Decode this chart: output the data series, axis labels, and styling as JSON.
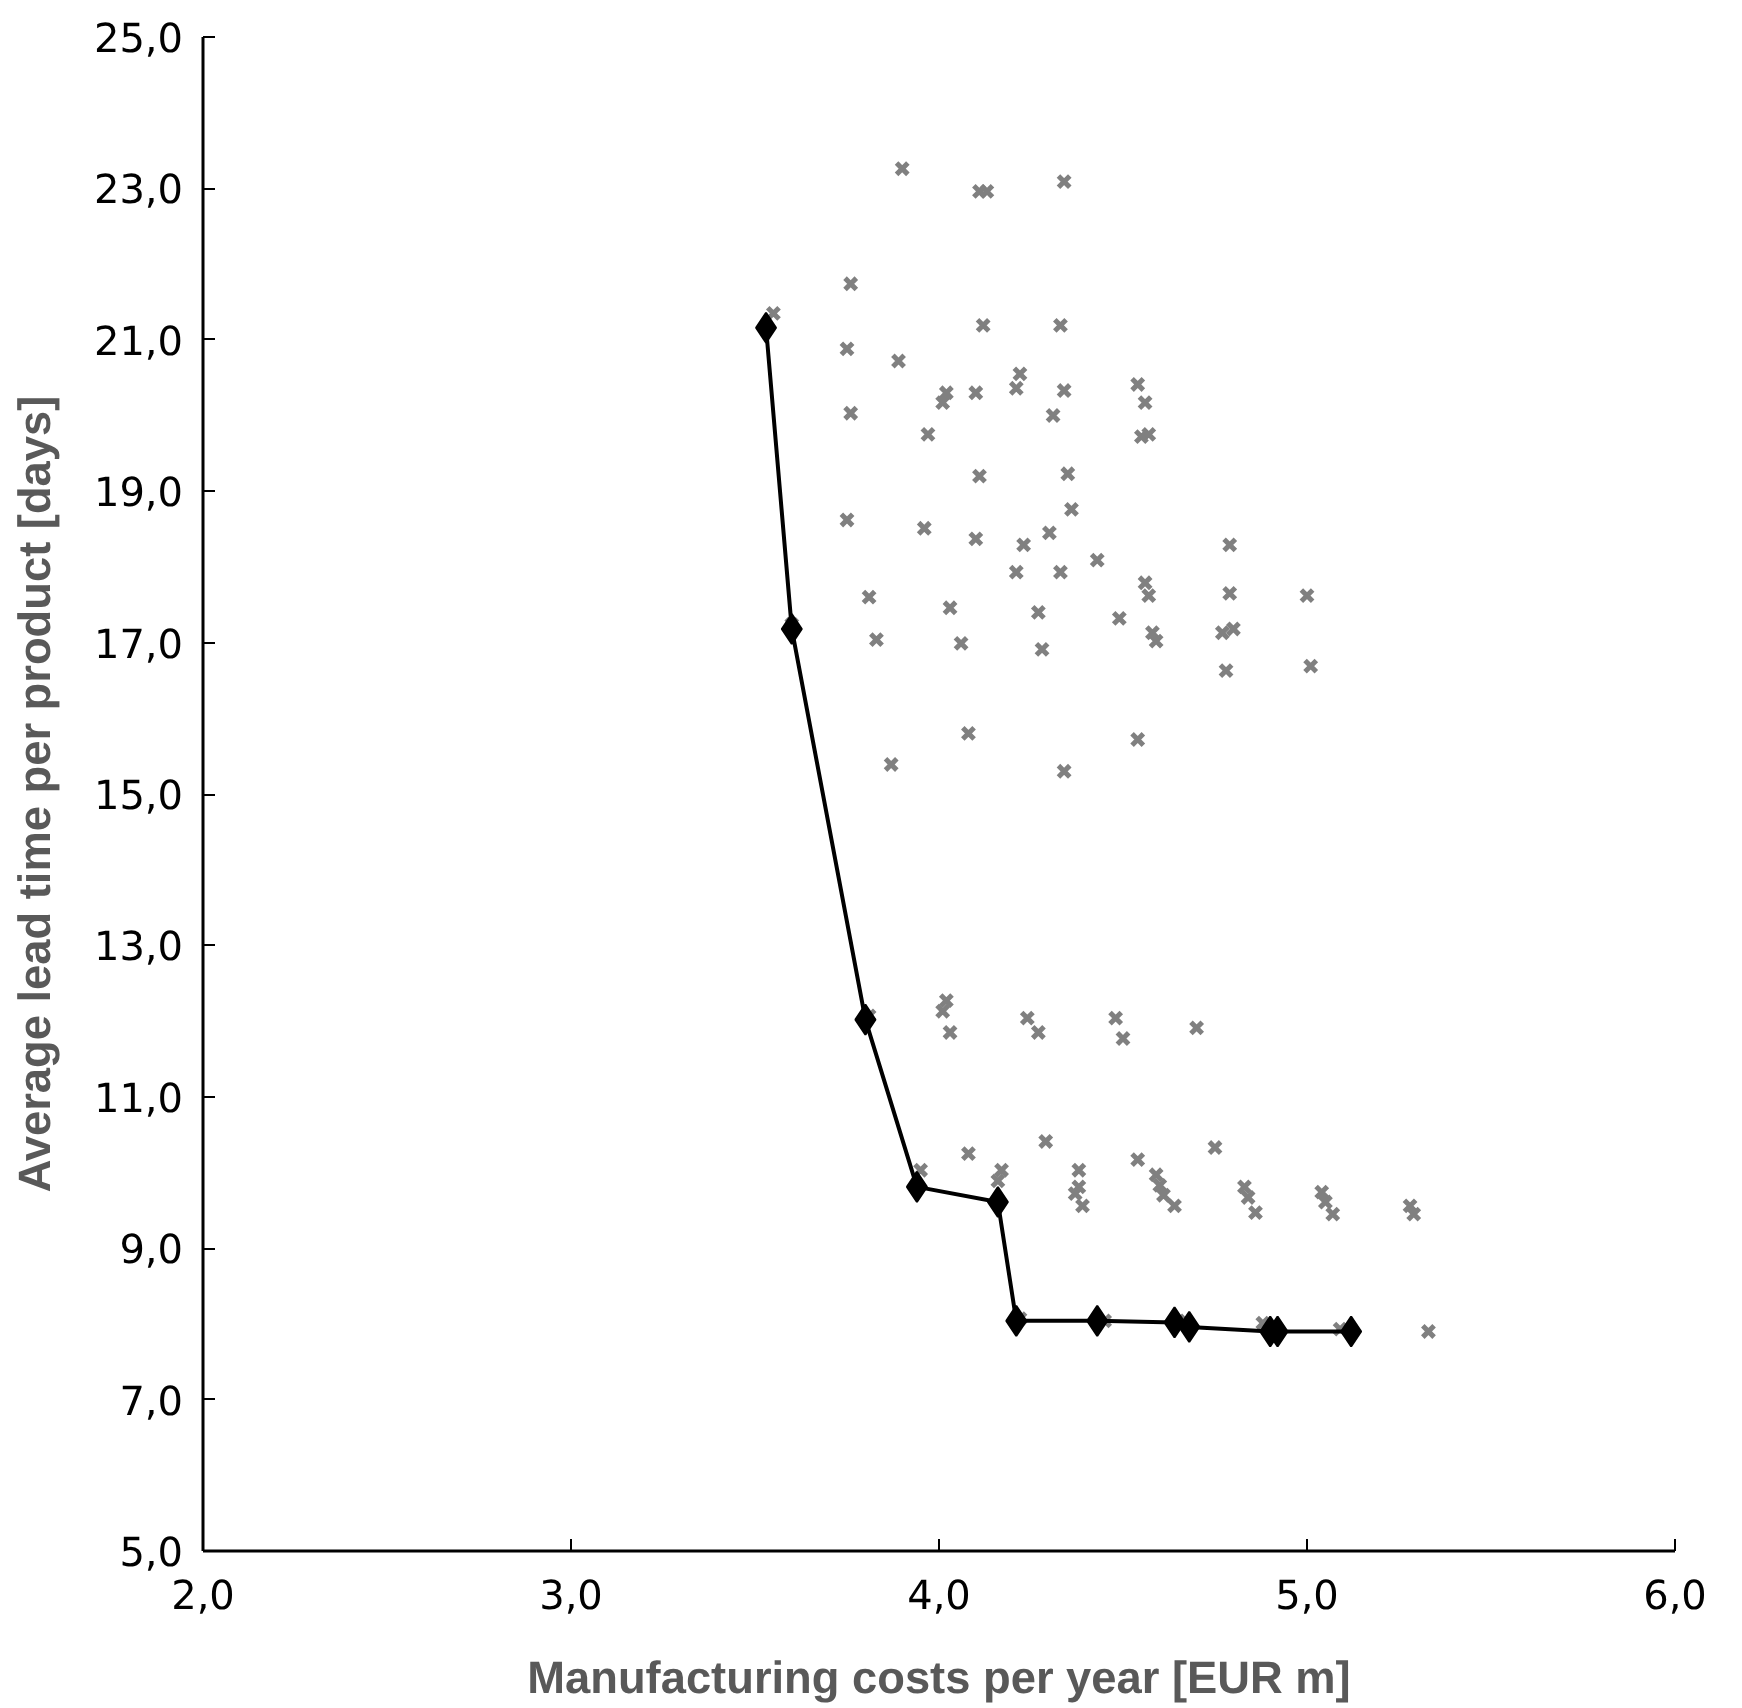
{
  "chart_data": {
    "type": "scatter",
    "xlabel": "Manufacturing costs per year [EUR m]",
    "ylabel": "Average lead time per product [days]",
    "xlim": [
      2,
      6
    ],
    "ylim": [
      5,
      25
    ],
    "xticks": [
      {
        "value": 2,
        "label": "2,0"
      },
      {
        "value": 3,
        "label": "3,0"
      },
      {
        "value": 4,
        "label": "4,0"
      },
      {
        "value": 5,
        "label": "5,0"
      },
      {
        "value": 6,
        "label": "6,0"
      }
    ],
    "yticks": [
      {
        "value": 5,
        "label": "5,0"
      },
      {
        "value": 7,
        "label": "7,0"
      },
      {
        "value": 9,
        "label": "9,0"
      },
      {
        "value": 11,
        "label": "11,0"
      },
      {
        "value": 13,
        "label": "13,0"
      },
      {
        "value": 15,
        "label": "15,0"
      },
      {
        "value": 17,
        "label": "17,0"
      },
      {
        "value": 19,
        "label": "19,0"
      },
      {
        "value": 21,
        "label": "21,0"
      },
      {
        "value": 23,
        "label": "23,0"
      },
      {
        "value": 25,
        "label": "25,0"
      }
    ],
    "series": [
      {
        "marker": "cross",
        "color": "#808080",
        "x": [
          3.9,
          4.11,
          4.13,
          4.34,
          3.76,
          3.55,
          4.12,
          4.33,
          3.75,
          3.89,
          4.02,
          4.01,
          4.1,
          4.22,
          4.21,
          4.34,
          4.54,
          4.56,
          3.76,
          3.97,
          4.31,
          4.55,
          4.57,
          4.11,
          4.35,
          3.75,
          4.36,
          3.96,
          4.1,
          4.23,
          4.3,
          4.79,
          4.43,
          4.21,
          4.33,
          3.81,
          4.56,
          4.57,
          4.79,
          5.0,
          4.03,
          4.27,
          4.49,
          3.6,
          3.83,
          4.06,
          4.28,
          4.58,
          4.59,
          4.77,
          4.8,
          4.78,
          5.01,
          4.08,
          3.87,
          4.54,
          4.34,
          3.81,
          4.02,
          4.01,
          4.03,
          4.24,
          4.27,
          4.48,
          4.5,
          4.7,
          4.29,
          4.08,
          3.95,
          4.17,
          4.16,
          4.54,
          4.59,
          4.75,
          4.38,
          4.38,
          4.39,
          4.37,
          4.61,
          4.6,
          4.64,
          4.84,
          4.83,
          4.86,
          5.05,
          5.04,
          5.07,
          5.28,
          5.29,
          4.22,
          4.45,
          4.65,
          4.88,
          5.09,
          5.33
        ],
        "values": [
          23.26,
          22.96,
          22.96,
          23.09,
          21.74,
          21.35,
          21.19,
          21.19,
          20.88,
          20.72,
          20.3,
          20.17,
          20.3,
          20.55,
          20.36,
          20.33,
          20.41,
          20.17,
          20.03,
          19.75,
          20.0,
          19.72,
          19.75,
          19.2,
          19.23,
          18.62,
          18.76,
          18.51,
          18.37,
          18.29,
          18.45,
          18.29,
          18.09,
          17.93,
          17.93,
          17.6,
          17.79,
          17.62,
          17.65,
          17.62,
          17.46,
          17.4,
          17.32,
          17.24,
          17.04,
          16.99,
          16.91,
          17.13,
          17.02,
          17.13,
          17.18,
          16.63,
          16.69,
          15.8,
          15.39,
          15.72,
          15.3,
          12.07,
          12.27,
          12.13,
          11.85,
          12.04,
          11.85,
          12.04,
          11.77,
          11.91,
          10.41,
          10.25,
          10.03,
          10.03,
          9.89,
          10.17,
          9.97,
          10.33,
          9.81,
          10.03,
          9.56,
          9.72,
          9.7,
          9.83,
          9.56,
          9.67,
          9.81,
          9.47,
          9.61,
          9.74,
          9.45,
          9.56,
          9.45,
          8.07,
          8.04,
          8.04,
          8.01,
          7.93,
          7.9
        ]
      },
      {
        "type": "line",
        "marker": "diamond",
        "color": "#000000",
        "line_style": "solid",
        "x": [
          3.53,
          3.6,
          3.8,
          3.94,
          4.16,
          4.21,
          4.43,
          4.64,
          4.68,
          4.9,
          4.92,
          5.12
        ],
        "values": [
          21.16,
          17.18,
          12.02,
          9.81,
          9.61,
          8.04,
          8.04,
          8.02,
          7.96,
          7.9,
          7.9,
          7.9
        ]
      }
    ]
  }
}
